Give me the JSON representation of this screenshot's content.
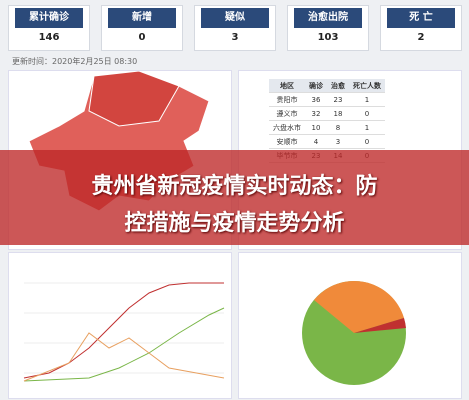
{
  "cards": [
    {
      "label": "累计确诊",
      "value": 146
    },
    {
      "label": "新增",
      "value": 0
    },
    {
      "label": "疑似",
      "value": 3
    },
    {
      "label": "治愈出院",
      "value": 103
    },
    {
      "label": "死 亡",
      "value": 2
    }
  ],
  "update_time": "更新时间：2020年2月25日 08:30",
  "table": {
    "header": [
      "地区",
      "确诊",
      "治愈",
      "死亡人数"
    ],
    "rows": [
      [
        "贵阳市",
        36,
        23,
        1
      ],
      [
        "遵义市",
        32,
        18,
        0
      ],
      [
        "六盘水市",
        10,
        8,
        1
      ],
      [
        "安顺市",
        4,
        3,
        0
      ],
      [
        "毕节市",
        23,
        14,
        0
      ]
    ]
  },
  "headline": [
    "贵州省新冠疫情实时动态：防",
    "控措施与疫情走势分析"
  ]
}
